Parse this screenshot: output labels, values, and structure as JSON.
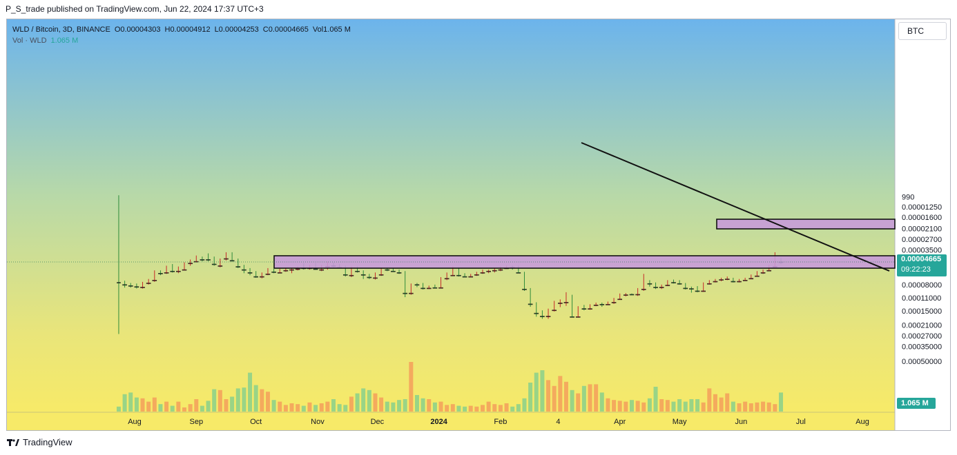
{
  "header": {
    "published_line": "P_S_trade published on TradingView.com, Jun 22, 2024 17:37 UTC+3"
  },
  "legend": {
    "symbol": "WLD / Bitcoin, 3D, BINANCE",
    "open": "O0.00004303",
    "high": "H0.00004912",
    "low": "L0.00004253",
    "close": "C0.00004665",
    "vol": "Vol1.065 M",
    "vol_label": "Vol · WLD",
    "vol_value": "1.065 M"
  },
  "scale_button": "BTC",
  "last_price_tag": {
    "price": "0.00004665",
    "countdown": "09:22:23"
  },
  "volume_tag": "1.065 M",
  "footer": {
    "brand": "TradingView"
  },
  "colors": {
    "up": "#26a69a",
    "candle_up": "#2e8b3a",
    "candle_down": "#c62828",
    "zone_fill": "#c79adb",
    "bg_top": "#6cb4ec",
    "bg_bottom": "#f7ea68"
  },
  "chart_data": {
    "type": "candlestick",
    "y_scale": "log",
    "y_ticks": [
      "0.00050000",
      "0.00035000",
      "0.00027000",
      "0.00021000",
      "0.00015000",
      "0.00011000",
      "0.00008000",
      "0.00006000",
      "0.00004665",
      "0.00003500",
      "0.00002700",
      "0.00002100",
      "0.00001600",
      "0.00001250",
      "990"
    ],
    "x_ticks": [
      "Aug",
      "Sep",
      "Oct",
      "Nov",
      "Dec",
      "2024",
      "Feb",
      "4",
      "Apr",
      "May",
      "Jun",
      "Jul",
      "Aug"
    ],
    "ylim": [
      9.5e-06,
      0.00058
    ],
    "candles": [
      {
        "date": "2023-07-24",
        "o": 3.8e-05,
        "h": 0.00026,
        "l": 9.5e-06,
        "c": 7.6e-05
      },
      {
        "date": "2023-07-27",
        "o": 7.6e-05,
        "h": 8.6e-05,
        "l": 7.3e-05,
        "c": 8e-05
      },
      {
        "date": "2023-07-30",
        "o": 8e-05,
        "h": 8.6e-05,
        "l": 7.7e-05,
        "c": 8.2e-05
      },
      {
        "date": "2023-08-02",
        "o": 8.2e-05,
        "h": 8.8e-05,
        "l": 7.8e-05,
        "c": 8.4e-05
      },
      {
        "date": "2023-08-05",
        "o": 8.5e-05,
        "h": 8.8e-05,
        "l": 7.5e-05,
        "c": 7.7e-05
      },
      {
        "date": "2023-08-08",
        "o": 7.7e-05,
        "h": 8e-05,
        "l": 7e-05,
        "c": 7.1e-05
      },
      {
        "date": "2023-08-11",
        "o": 7.2e-05,
        "h": 7.5e-05,
        "l": 5.7e-05,
        "c": 5.8e-05
      },
      {
        "date": "2023-08-14",
        "o": 6e-05,
        "h": 6.4e-05,
        "l": 5.7e-05,
        "c": 6.1e-05
      },
      {
        "date": "2023-08-17",
        "o": 6e-05,
        "h": 6.2e-05,
        "l": 5.1e-05,
        "c": 5.3e-05
      },
      {
        "date": "2023-08-20",
        "o": 5.2e-05,
        "h": 6e-05,
        "l": 4.9e-05,
        "c": 5.8e-05
      },
      {
        "date": "2023-08-23",
        "o": 5.8e-05,
        "h": 6.1e-05,
        "l": 5.2e-05,
        "c": 5.4e-05
      },
      {
        "date": "2023-08-26",
        "o": 5.6e-05,
        "h": 5.7e-05,
        "l": 4.7e-05,
        "c": 4.8e-05
      },
      {
        "date": "2023-08-29",
        "o": 4.8e-05,
        "h": 5.1e-05,
        "l": 4.4e-05,
        "c": 4.6e-05
      },
      {
        "date": "2023-09-01",
        "o": 4.6e-05,
        "h": 4.7e-05,
        "l": 4e-05,
        "c": 4.2e-05
      },
      {
        "date": "2023-09-04",
        "o": 4.2e-05,
        "h": 4.6e-05,
        "l": 4.1e-05,
        "c": 4.4e-05
      },
      {
        "date": "2023-09-07",
        "o": 4.4e-05,
        "h": 4.6e-05,
        "l": 3.8e-05,
        "c": 4.4e-05
      },
      {
        "date": "2023-09-10",
        "o": 4.4e-05,
        "h": 5.1e-05,
        "l": 4.1e-05,
        "c": 4.9e-05
      },
      {
        "date": "2023-09-13",
        "o": 5.1e-05,
        "h": 5.3e-05,
        "l": 4.3e-05,
        "c": 4.4e-05
      },
      {
        "date": "2023-09-16",
        "o": 4.3e-05,
        "h": 4.5e-05,
        "l": 3.7e-05,
        "c": 3.8e-05
      },
      {
        "date": "2023-09-19",
        "o": 3.8e-05,
        "h": 4.6e-05,
        "l": 3.7e-05,
        "c": 4.5e-05
      },
      {
        "date": "2023-09-22",
        "o": 4.5e-05,
        "h": 5.4e-05,
        "l": 4.3e-05,
        "c": 5.2e-05
      },
      {
        "date": "2023-09-25",
        "o": 5.2e-05,
        "h": 6.1e-05,
        "l": 5e-05,
        "c": 5.6e-05
      },
      {
        "date": "2023-09-28",
        "o": 5.6e-05,
        "h": 6.4e-05,
        "l": 5.4e-05,
        "c": 6e-05
      },
      {
        "date": "2023-10-01",
        "o": 6e-05,
        "h": 6.8e-05,
        "l": 5.8e-05,
        "c": 6.6e-05
      },
      {
        "date": "2023-10-04",
        "o": 6.6e-05,
        "h": 6.9e-05,
        "l": 6e-05,
        "c": 6.2e-05
      },
      {
        "date": "2023-10-07",
        "o": 6.2e-05,
        "h": 6.4e-05,
        "l": 5.4e-05,
        "c": 5.6e-05
      },
      {
        "date": "2023-10-10",
        "o": 5.6e-05,
        "h": 6.1e-05,
        "l": 5.5e-05,
        "c": 5.9e-05
      },
      {
        "date": "2023-10-13",
        "o": 6e-05,
        "h": 6.1e-05,
        "l": 5.5e-05,
        "c": 5.7e-05
      },
      {
        "date": "2023-10-16",
        "o": 5.7e-05,
        "h": 5.9e-05,
        "l": 5.4e-05,
        "c": 5.6e-05
      },
      {
        "date": "2023-10-19",
        "o": 5.6e-05,
        "h": 6.1e-05,
        "l": 5.4e-05,
        "c": 5.5e-05
      },
      {
        "date": "2023-10-22",
        "o": 5.5e-05,
        "h": 5.7e-05,
        "l": 5.2e-05,
        "c": 5.3e-05
      },
      {
        "date": "2023-10-25",
        "o": 5.2e-05,
        "h": 5.6e-05,
        "l": 4.8e-05,
        "c": 5.4e-05
      },
      {
        "date": "2023-10-28",
        "o": 5.4e-05,
        "h": 5.6e-05,
        "l": 5e-05,
        "c": 5.1e-05
      },
      {
        "date": "2023-10-31",
        "o": 5.1e-05,
        "h": 5.6e-05,
        "l": 4.8e-05,
        "c": 5.5e-05
      },
      {
        "date": "2023-11-03",
        "o": 5.6e-05,
        "h": 5.8e-05,
        "l": 5e-05,
        "c": 5.2e-05
      },
      {
        "date": "2023-11-06",
        "o": 5.2e-05,
        "h": 5.6e-05,
        "l": 4.6e-05,
        "c": 4.9e-05
      },
      {
        "date": "2023-11-09",
        "o": 4.8e-05,
        "h": 5.3e-05,
        "l": 4.7e-05,
        "c": 5.1e-05
      },
      {
        "date": "2023-11-12",
        "o": 5.1e-05,
        "h": 5.4e-05,
        "l": 4.9e-05,
        "c": 5.3e-05
      },
      {
        "date": "2023-11-15",
        "o": 5.3e-05,
        "h": 6.6e-05,
        "l": 5.1e-05,
        "c": 6.3e-05
      },
      {
        "date": "2023-11-18",
        "o": 6.4e-05,
        "h": 6.7e-05,
        "l": 5.2e-05,
        "c": 5.4e-05
      },
      {
        "date": "2023-11-21",
        "o": 5.4e-05,
        "h": 6e-05,
        "l": 5.2e-05,
        "c": 5.8e-05
      },
      {
        "date": "2023-11-24",
        "o": 5.8e-05,
        "h": 7e-05,
        "l": 5.7e-05,
        "c": 6.3e-05
      },
      {
        "date": "2023-11-27",
        "o": 6.4e-05,
        "h": 7e-05,
        "l": 6.2e-05,
        "c": 6.7e-05
      },
      {
        "date": "2023-11-30",
        "o": 6.8e-05,
        "h": 7.1e-05,
        "l": 6e-05,
        "c": 6.2e-05
      },
      {
        "date": "2023-12-03",
        "o": 6.3e-05,
        "h": 6.5e-05,
        "l": 5.4e-05,
        "c": 5.5e-05
      },
      {
        "date": "2023-12-06",
        "o": 5.5e-05,
        "h": 5.8e-05,
        "l": 5.3e-05,
        "c": 5.6e-05
      },
      {
        "date": "2023-12-09",
        "o": 5.6e-05,
        "h": 5.9e-05,
        "l": 5.4e-05,
        "c": 5.8e-05
      },
      {
        "date": "2023-12-12",
        "o": 5.8e-05,
        "h": 6.2e-05,
        "l": 5.6e-05,
        "c": 6e-05
      },
      {
        "date": "2023-12-15",
        "o": 5.9e-05,
        "h": 0.000108,
        "l": 5.8e-05,
        "c": 9.8e-05
      },
      {
        "date": "2023-12-18",
        "o": 9.8e-05,
        "h": 0.000102,
        "l": 7.8e-05,
        "c": 7.9e-05
      },
      {
        "date": "2023-12-21",
        "o": 7.9e-05,
        "h": 8.5e-05,
        "l": 7.7e-05,
        "c": 8e-05
      },
      {
        "date": "2023-12-24",
        "o": 8e-05,
        "h": 9e-05,
        "l": 7.7e-05,
        "c": 8.7e-05
      },
      {
        "date": "2023-12-27",
        "o": 8.7e-05,
        "h": 8.9e-05,
        "l": 8.2e-05,
        "c": 8.3e-05
      },
      {
        "date": "2023-12-30",
        "o": 8.3e-05,
        "h": 8.8e-05,
        "l": 8e-05,
        "c": 8.6e-05
      },
      {
        "date": "2024-01-02",
        "o": 8.6e-05,
        "h": 8.7e-05,
        "l": 6.7e-05,
        "c": 6.9e-05
      },
      {
        "date": "2024-01-05",
        "o": 6.9e-05,
        "h": 7.2e-05,
        "l": 6e-05,
        "c": 6.4e-05
      },
      {
        "date": "2024-01-08",
        "o": 6.4e-05,
        "h": 6.5e-05,
        "l": 5.2e-05,
        "c": 5.4e-05
      },
      {
        "date": "2024-01-11",
        "o": 5.4e-05,
        "h": 6.6e-05,
        "l": 5.3e-05,
        "c": 6.4e-05
      },
      {
        "date": "2024-01-14",
        "o": 6.4e-05,
        "h": 6.7e-05,
        "l": 6.1e-05,
        "c": 6.6e-05
      },
      {
        "date": "2024-01-17",
        "o": 6.6e-05,
        "h": 6.7e-05,
        "l": 6.2e-05,
        "c": 6.3e-05
      },
      {
        "date": "2024-01-20",
        "o": 6.3e-05,
        "h": 6.5e-05,
        "l": 5.9e-05,
        "c": 6e-05
      },
      {
        "date": "2024-01-23",
        "o": 6e-05,
        "h": 6.2e-05,
        "l": 5.6e-05,
        "c": 5.8e-05
      },
      {
        "date": "2024-01-26",
        "o": 5.8e-05,
        "h": 6.1e-05,
        "l": 5.6e-05,
        "c": 5.7e-05
      },
      {
        "date": "2024-01-29",
        "o": 5.7e-05,
        "h": 6e-05,
        "l": 5.4e-05,
        "c": 5.6e-05
      },
      {
        "date": "2024-02-01",
        "o": 5.6e-05,
        "h": 5.8e-05,
        "l": 5.2e-05,
        "c": 5.4e-05
      },
      {
        "date": "2024-02-04",
        "o": 5.4e-05,
        "h": 5.5e-05,
        "l": 5.1e-05,
        "c": 5.2e-05
      },
      {
        "date": "2024-02-07",
        "o": 5.2e-05,
        "h": 5.6e-05,
        "l": 5.1e-05,
        "c": 5.3e-05
      },
      {
        "date": "2024-02-10",
        "o": 5.2e-05,
        "h": 6.1e-05,
        "l": 5.1e-05,
        "c": 6e-05
      },
      {
        "date": "2024-02-13",
        "o": 6e-05,
        "h": 9.3e-05,
        "l": 5.9e-05,
        "c": 8.9e-05
      },
      {
        "date": "2024-02-16",
        "o": 8.9e-05,
        "h": 0.000136,
        "l": 8.7e-05,
        "c": 0.000127
      },
      {
        "date": "2024-02-19",
        "o": 0.000127,
        "h": 0.000172,
        "l": 0.000122,
        "c": 0.000158
      },
      {
        "date": "2024-02-22",
        "o": 0.000158,
        "h": 0.000181,
        "l": 0.000148,
        "c": 0.00017
      },
      {
        "date": "2024-02-25",
        "o": 0.00017,
        "h": 0.000181,
        "l": 0.000142,
        "c": 0.000147
      },
      {
        "date": "2024-02-28",
        "o": 0.000147,
        "h": 0.000152,
        "l": 0.000118,
        "c": 0.000124
      },
      {
        "date": "2024-03-02",
        "o": 0.000124,
        "h": 0.000137,
        "l": 0.000114,
        "c": 0.00012
      },
      {
        "date": "2024-03-05",
        "o": 0.000122,
        "h": 0.000133,
        "l": 9.6e-05,
        "c": 0.000105
      },
      {
        "date": "2024-03-08",
        "o": 0.000105,
        "h": 0.000173,
        "l": 0.000102,
        "c": 0.000172
      },
      {
        "date": "2024-03-11",
        "o": 0.000172,
        "h": 0.000176,
        "l": 0.000134,
        "c": 0.000139
      },
      {
        "date": "2024-03-14",
        "o": 0.000139,
        "h": 0.000148,
        "l": 0.00013,
        "c": 0.000142
      },
      {
        "date": "2024-03-17",
        "o": 0.000142,
        "h": 0.000146,
        "l": 0.000128,
        "c": 0.00013
      },
      {
        "date": "2024-03-20",
        "o": 0.00013,
        "h": 0.000134,
        "l": 0.000123,
        "c": 0.000125
      },
      {
        "date": "2024-03-23",
        "o": 0.000125,
        "h": 0.000136,
        "l": 0.000123,
        "c": 0.000128
      },
      {
        "date": "2024-03-26",
        "o": 0.000128,
        "h": 0.00013,
        "l": 0.00012,
        "c": 0.000122
      },
      {
        "date": "2024-03-29",
        "o": 0.000122,
        "h": 0.000127,
        "l": 0.00011,
        "c": 0.000113
      },
      {
        "date": "2024-04-01",
        "o": 0.000113,
        "h": 0.000115,
        "l": 9.9e-05,
        "c": 0.000102
      },
      {
        "date": "2024-04-04",
        "o": 0.000102,
        "h": 0.000106,
        "l": 9.8e-05,
        "c": 0.0001
      },
      {
        "date": "2024-04-07",
        "o": 0.0001,
        "h": 0.000103,
        "l": 9.9e-05,
        "c": 0.000101
      },
      {
        "date": "2024-04-10",
        "o": 0.000101,
        "h": 0.000105,
        "l": 8.7e-05,
        "c": 8.9e-05
      },
      {
        "date": "2024-04-13",
        "o": 8.9e-05,
        "h": 9.3e-05,
        "l": 6.2e-05,
        "c": 7.7e-05
      },
      {
        "date": "2024-04-16",
        "o": 7.7e-05,
        "h": 8.4e-05,
        "l": 7.2e-05,
        "c": 7.8e-05
      },
      {
        "date": "2024-04-19",
        "o": 7.8e-05,
        "h": 8.9e-05,
        "l": 7.6e-05,
        "c": 8.5e-05
      },
      {
        "date": "2024-04-22",
        "o": 8.5e-05,
        "h": 8.9e-05,
        "l": 8e-05,
        "c": 8.1e-05
      },
      {
        "date": "2024-04-25",
        "o": 8.1e-05,
        "h": 8.3e-05,
        "l": 7.2e-05,
        "c": 7.4e-05
      },
      {
        "date": "2024-04-28",
        "o": 7.4e-05,
        "h": 7.8e-05,
        "l": 7.1e-05,
        "c": 7.6e-05
      },
      {
        "date": "2024-05-01",
        "o": 7.6e-05,
        "h": 8e-05,
        "l": 7.2e-05,
        "c": 7.8e-05
      },
      {
        "date": "2024-05-04",
        "o": 7.8e-05,
        "h": 9e-05,
        "l": 7.7e-05,
        "c": 8.7e-05
      },
      {
        "date": "2024-05-07",
        "o": 8.7e-05,
        "h": 9.7e-05,
        "l": 8.4e-05,
        "c": 8.8e-05
      },
      {
        "date": "2024-05-10",
        "o": 8.8e-05,
        "h": 9.6e-05,
        "l": 8.3e-05,
        "c": 9.3e-05
      },
      {
        "date": "2024-05-13",
        "o": 9.3e-05,
        "h": 9.5e-05,
        "l": 7.6e-05,
        "c": 7.8e-05
      },
      {
        "date": "2024-05-16",
        "o": 7.8e-05,
        "h": 8e-05,
        "l": 7.2e-05,
        "c": 7.4e-05
      },
      {
        "date": "2024-05-19",
        "o": 7.4e-05,
        "h": 7.6e-05,
        "l": 7e-05,
        "c": 7.1e-05
      },
      {
        "date": "2024-05-22",
        "o": 7.1e-05,
        "h": 7.4e-05,
        "l": 6.8e-05,
        "c": 7e-05
      },
      {
        "date": "2024-05-25",
        "o": 7e-05,
        "h": 7.2e-05,
        "l": 6.6e-05,
        "c": 6.8e-05
      },
      {
        "date": "2024-05-28",
        "o": 6.9e-05,
        "h": 7.6e-05,
        "l": 6.8e-05,
        "c": 7.4e-05
      },
      {
        "date": "2024-05-31",
        "o": 7.4e-05,
        "h": 7.6e-05,
        "l": 7e-05,
        "c": 7.2e-05
      },
      {
        "date": "2024-06-03",
        "o": 7.2e-05,
        "h": 7.3e-05,
        "l": 6.8e-05,
        "c": 6.9e-05
      },
      {
        "date": "2024-06-06",
        "o": 6.9e-05,
        "h": 7e-05,
        "l": 6.3e-05,
        "c": 6.5e-05
      },
      {
        "date": "2024-06-09",
        "o": 6.5e-05,
        "h": 6.6e-05,
        "l": 5.8e-05,
        "c": 6e-05
      },
      {
        "date": "2024-06-12",
        "o": 6e-05,
        "h": 6.2e-05,
        "l": 5.6e-05,
        "c": 5.7e-05
      },
      {
        "date": "2024-06-15",
        "o": 5.7e-05,
        "h": 5.8e-05,
        "l": 5e-05,
        "c": 5.2e-05
      },
      {
        "date": "2024-06-18",
        "o": 5.2e-05,
        "h": 5.3e-05,
        "l": 3.7e-05,
        "c": 4.3e-05
      },
      {
        "date": "2024-06-21",
        "o": 4.3e-05,
        "h": 4.91e-05,
        "l": 4.25e-05,
        "c": 4.67e-05
      }
    ],
    "volume_series_M": [
      0.6,
      2.1,
      2.3,
      1.7,
      1.6,
      1.2,
      1.7,
      0.9,
      1.2,
      0.7,
      1.2,
      0.5,
      0.9,
      1.5,
      0.7,
      1.3,
      2.7,
      2.6,
      1.5,
      1.8,
      2.8,
      2.9,
      4.7,
      3.2,
      2.7,
      2.4,
      1.4,
      1.2,
      0.8,
      1.0,
      0.9,
      0.7,
      1.1,
      0.8,
      1.0,
      1.2,
      1.5,
      0.9,
      0.8,
      1.8,
      2.2,
      2.8,
      2.6,
      2.2,
      1.7,
      1.2,
      1.1,
      1.4,
      1.5,
      6.0,
      2.0,
      1.6,
      1.5,
      1.1,
      1.2,
      0.8,
      0.9,
      0.7,
      0.6,
      0.7,
      0.6,
      0.8,
      1.2,
      0.9,
      0.8,
      1.0,
      0.6,
      0.9,
      1.6,
      3.5,
      4.7,
      5.0,
      3.8,
      3.1,
      4.3,
      3.6,
      2.6,
      2.2,
      3.1,
      3.3,
      3.3,
      2.3,
      1.6,
      1.4,
      1.3,
      1.2,
      1.4,
      1.3,
      1.1,
      1.6,
      3.0,
      1.5,
      1.4,
      1.2,
      1.5,
      1.2,
      1.5,
      1.5,
      1.1,
      2.8,
      2.1,
      1.7,
      2.2,
      1.2,
      1.0,
      1.2,
      1.0,
      1.1,
      1.2,
      1.1,
      0.9,
      2.3,
      1.1
    ]
  }
}
